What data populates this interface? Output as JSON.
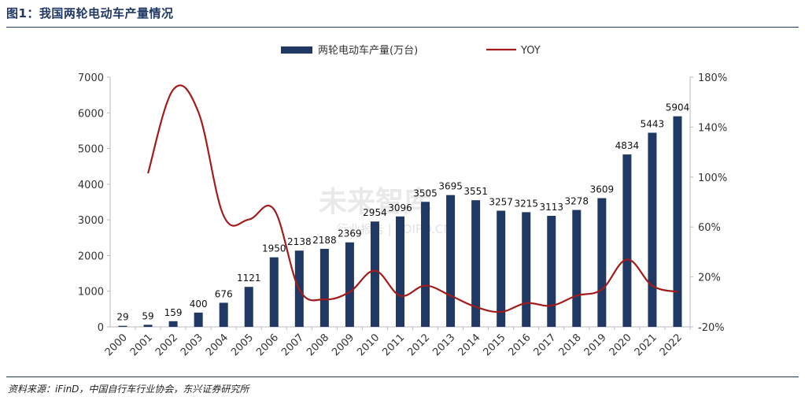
{
  "header": {
    "title": "图1：我国两轮电动车产量情况"
  },
  "source": {
    "text": "资料来源：iFinD，中国自行车行业协会，东兴证券研究所"
  },
  "watermark": {
    "main": "未来智库",
    "sub": "行业报告 | POIPO.CN"
  },
  "colors": {
    "bar": "#1f3864",
    "line": "#a31c1c",
    "title": "#1f3864"
  },
  "chart_data": {
    "type": "bar",
    "categories": [
      "2000",
      "2001",
      "2002",
      "2003",
      "2004",
      "2005",
      "2006",
      "2007",
      "2008",
      "2009",
      "2010",
      "2011",
      "2012",
      "2013",
      "2014",
      "2015",
      "2016",
      "2017",
      "2018",
      "2019",
      "2020",
      "2021",
      "2022"
    ],
    "series": [
      {
        "name": "两轮电动车产量(万台)",
        "type": "bar",
        "axis": "left",
        "values": [
          29,
          59,
          159,
          400,
          676,
          1121,
          1950,
          2138,
          2188,
          2369,
          2954,
          3096,
          3505,
          3695,
          3551,
          3257,
          3215,
          3113,
          3278,
          3609,
          4834,
          5443,
          5904
        ]
      },
      {
        "name": "YOY",
        "type": "line",
        "axis": "right",
        "values": [
          null,
          103,
          170,
          152,
          69,
          66,
          74,
          10,
          2,
          8,
          25,
          5,
          13,
          5,
          -4,
          -8,
          -1,
          -3,
          5,
          10,
          34,
          13,
          8
        ]
      }
    ],
    "y_left": {
      "min": 0,
      "max": 7000,
      "ticks": [
        "0",
        "1000",
        "2000",
        "3000",
        "4000",
        "5000",
        "6000",
        "7000"
      ]
    },
    "y_right": {
      "min": -20,
      "max": 180,
      "ticks": [
        "-20%",
        "20%",
        "60%",
        "100%",
        "140%",
        "180%"
      ]
    },
    "legend": {
      "placement": "top-center"
    },
    "grid": false
  }
}
